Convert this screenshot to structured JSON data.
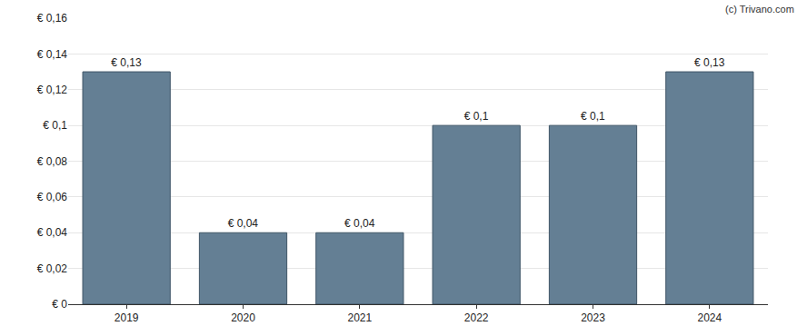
{
  "chart_data": {
    "type": "bar",
    "categories": [
      "2019",
      "2020",
      "2021",
      "2022",
      "2023",
      "2024"
    ],
    "values": [
      0.13,
      0.04,
      0.04,
      0.1,
      0.1,
      0.13
    ],
    "value_labels": [
      "€ 0,13",
      "€ 0,04",
      "€ 0,04",
      "€ 0,1",
      "€ 0,1",
      "€ 0,13"
    ],
    "data_labels": true,
    "color": "#647f94",
    "ylim": [
      0,
      0.16
    ],
    "yticks": [
      {
        "value": 0,
        "label": "€ 0"
      },
      {
        "value": 0.02,
        "label": "€ 0,02"
      },
      {
        "value": 0.04,
        "label": "€ 0,04"
      },
      {
        "value": 0.06,
        "label": "€ 0,06"
      },
      {
        "value": 0.08,
        "label": "€ 0,08"
      },
      {
        "value": 0.1,
        "label": "€ 0,1"
      },
      {
        "value": 0.12,
        "label": "€ 0,12"
      },
      {
        "value": 0.14,
        "label": "€ 0,14"
      },
      {
        "value": 0.16,
        "label": "€ 0,16"
      }
    ],
    "grid": true,
    "annotations": [
      {
        "text": "(c) Trivano.com"
      }
    ]
  }
}
